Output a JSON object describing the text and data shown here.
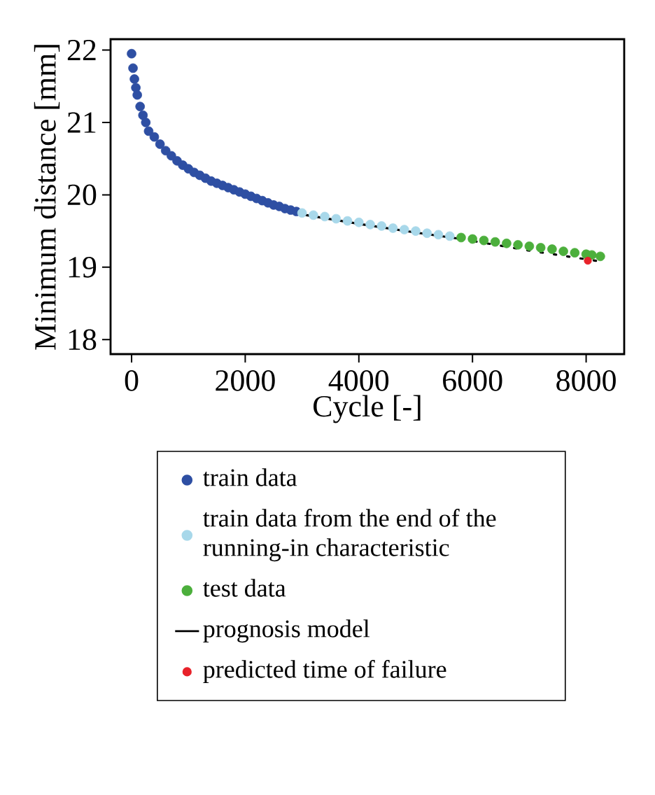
{
  "chart_data": {
    "type": "scatter",
    "xlabel": "Cycle [-]",
    "ylabel": "Minimum distance [mm]",
    "xlim": [
      -370,
      8670
    ],
    "ylim": [
      17.8,
      22.15
    ],
    "xticks": [
      0,
      2000,
      4000,
      6000,
      8000
    ],
    "yticks": [
      18,
      19,
      20,
      21,
      22
    ],
    "legend": "bottom",
    "marker": "circle",
    "grid": false,
    "series": [
      {
        "name": "train data",
        "color": "#2e4fa3",
        "x": [
          0,
          25,
          50,
          75,
          100,
          150,
          200,
          250,
          300,
          400,
          500,
          600,
          700,
          800,
          900,
          1000,
          1100,
          1200,
          1300,
          1400,
          1500,
          1600,
          1700,
          1800,
          1900,
          2000,
          2100,
          2200,
          2300,
          2400,
          2500,
          2600,
          2700,
          2800,
          2900
        ],
        "values": [
          21.95,
          21.75,
          21.6,
          21.48,
          21.38,
          21.22,
          21.1,
          21.0,
          20.88,
          20.8,
          20.7,
          20.61,
          20.54,
          20.47,
          20.41,
          20.36,
          20.31,
          20.27,
          20.23,
          20.19,
          20.16,
          20.13,
          20.1,
          20.07,
          20.04,
          20.01,
          19.98,
          19.95,
          19.92,
          19.89,
          19.86,
          19.84,
          19.81,
          19.79,
          19.77
        ]
      },
      {
        "name": "train data from the end of the running-in characteristic",
        "color": "#a8d8ea",
        "x": [
          3000,
          3200,
          3400,
          3600,
          3800,
          4000,
          4200,
          4400,
          4600,
          4800,
          5000,
          5200,
          5400,
          5600
        ],
        "values": [
          19.75,
          19.72,
          19.7,
          19.67,
          19.64,
          19.62,
          19.59,
          19.57,
          19.54,
          19.52,
          19.5,
          19.47,
          19.45,
          19.43
        ]
      },
      {
        "name": "test data",
        "color": "#4caf3c",
        "x": [
          5800,
          6000,
          6200,
          6400,
          6600,
          6800,
          7000,
          7200,
          7400,
          7600,
          7800,
          8000,
          8100,
          8250
        ],
        "values": [
          19.41,
          19.39,
          19.37,
          19.35,
          19.33,
          19.31,
          19.29,
          19.27,
          19.25,
          19.22,
          19.2,
          19.18,
          19.17,
          19.15
        ]
      },
      {
        "name": "prognosis model",
        "type": "line",
        "color": "#000000",
        "line_style": "solid",
        "marker": "none",
        "x": [
          3000,
          4000,
          5000,
          5800
        ],
        "values": [
          19.73,
          19.6,
          19.48,
          19.39
        ]
      },
      {
        "name": "predicted time of failure",
        "color": "#e8222a",
        "x": [
          8030
        ],
        "values": [
          19.09
        ]
      },
      {
        "type": "line",
        "color": "#000000",
        "line_style": "dotted",
        "marker": "none",
        "x": [
          5800,
          7000,
          8250
        ],
        "values": [
          19.39,
          19.23,
          19.08
        ]
      }
    ]
  }
}
